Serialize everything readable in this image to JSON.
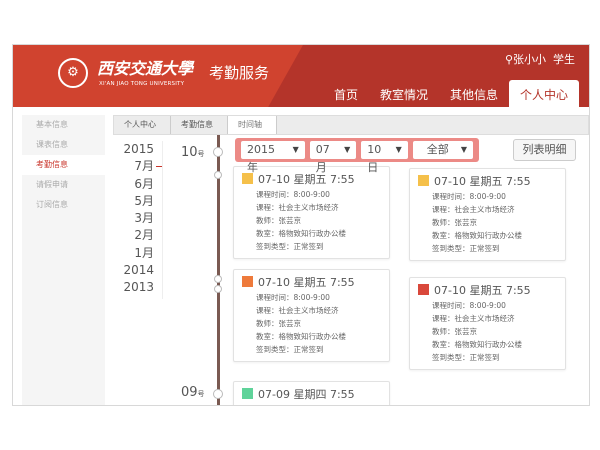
{
  "header": {
    "logo_text": "西安交通大學",
    "logo_en": "XI'AN JIAO TONG UNIVERSITY",
    "service": "考勤服务",
    "user": "张小小",
    "role": "学生"
  },
  "nav": [
    "首页",
    "教室情况",
    "其他信息",
    "个人中心"
  ],
  "sidebar": [
    "基本信息",
    "课表信息",
    "考勤信息",
    "请假申请",
    "订阅信息"
  ],
  "breadcrumb": [
    "个人中心",
    "考勤信息",
    "时间轴"
  ],
  "years": [
    "2015",
    "7月",
    "6月",
    "5月",
    "3月",
    "2月",
    "1月",
    "2014",
    "2013"
  ],
  "days": [
    {
      "n": "10",
      "u": "号"
    },
    {
      "n": "09",
      "u": "号"
    }
  ],
  "filter": {
    "year": "2015年",
    "month": "07月",
    "day": "10日",
    "type": "全部"
  },
  "list_button": "列表明细",
  "labels": {
    "time": "课程时间：",
    "course": "课程：",
    "teacher": "教师：",
    "room": "教室：",
    "type": "签到类型："
  },
  "colors": {
    "accent": "#b4342a",
    "yellow": "#f5c04a",
    "orange": "#ee7a3b",
    "red": "#d9483b",
    "green": "#5fd39a"
  },
  "cards": [
    {
      "title": "07-10 星期五 7:55",
      "time": "8:00-9:00",
      "course": "社会主义市场经济",
      "teacher": "张芸京",
      "room": "格物致知行政办公楼",
      "type": "正常签到"
    },
    {
      "title": "07-10 星期五 7:55",
      "time": "8:00-9:00",
      "course": "社会主义市场经济",
      "teacher": "张芸京",
      "room": "格物致知行政办公楼",
      "type": "正常签到"
    },
    {
      "title": "07-10 星期五 7:55",
      "time": "8:00-9:00",
      "course": "社会主义市场经济",
      "teacher": "张芸京",
      "room": "格物致知行政办公楼",
      "type": "正常签到"
    },
    {
      "title": "07-10 星期五 7:55",
      "time": "8:00-9:00",
      "course": "社会主义市场经济",
      "teacher": "张芸京",
      "room": "格物致知行政办公楼",
      "type": "正常签到"
    },
    {
      "title": "07-09 星期四 7:55"
    }
  ]
}
